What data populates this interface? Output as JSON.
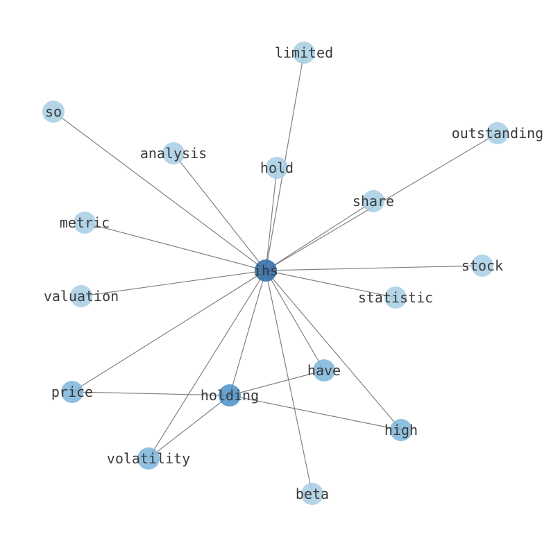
{
  "graph": {
    "center": "ihs",
    "nodes": [
      {
        "id": "ihs",
        "label": "ihs",
        "color": "#2c6aa6"
      },
      {
        "id": "holding",
        "label": "holding",
        "color": "#4a8fc6"
      },
      {
        "id": "have",
        "label": "have",
        "color": "#7db5da"
      },
      {
        "id": "high",
        "label": "high",
        "color": "#7db5da"
      },
      {
        "id": "price",
        "label": "price",
        "color": "#7db5da"
      },
      {
        "id": "volatility",
        "label": "volatility",
        "color": "#7db5da"
      },
      {
        "id": "limited",
        "label": "limited",
        "color": "#a6cee3"
      },
      {
        "id": "so",
        "label": "so",
        "color": "#a6cee3"
      },
      {
        "id": "analysis",
        "label": "analysis",
        "color": "#a6cee3"
      },
      {
        "id": "hold",
        "label": "hold",
        "color": "#a6cee3"
      },
      {
        "id": "outstanding",
        "label": "outstanding",
        "color": "#a6cee3"
      },
      {
        "id": "share",
        "label": "share",
        "color": "#a6cee3"
      },
      {
        "id": "metric",
        "label": "metric",
        "color": "#a6cee3"
      },
      {
        "id": "stock",
        "label": "stock",
        "color": "#a6cee3"
      },
      {
        "id": "valuation",
        "label": "valuation",
        "color": "#a6cee3"
      },
      {
        "id": "statistic",
        "label": "statistic",
        "color": "#a6cee3"
      },
      {
        "id": "beta",
        "label": "beta",
        "color": "#a6cee3"
      }
    ],
    "edges": [
      [
        "ihs",
        "limited"
      ],
      [
        "ihs",
        "so"
      ],
      [
        "ihs",
        "analysis"
      ],
      [
        "ihs",
        "hold"
      ],
      [
        "ihs",
        "outstanding"
      ],
      [
        "ihs",
        "share"
      ],
      [
        "ihs",
        "metric"
      ],
      [
        "ihs",
        "stock"
      ],
      [
        "ihs",
        "valuation"
      ],
      [
        "ihs",
        "statistic"
      ],
      [
        "ihs",
        "price"
      ],
      [
        "ihs",
        "holding"
      ],
      [
        "ihs",
        "have"
      ],
      [
        "ihs",
        "high"
      ],
      [
        "ihs",
        "volatility"
      ],
      [
        "ihs",
        "beta"
      ],
      [
        "holding",
        "price"
      ],
      [
        "holding",
        "have"
      ],
      [
        "holding",
        "high"
      ],
      [
        "holding",
        "volatility"
      ]
    ],
    "edge_color": "#808080"
  }
}
